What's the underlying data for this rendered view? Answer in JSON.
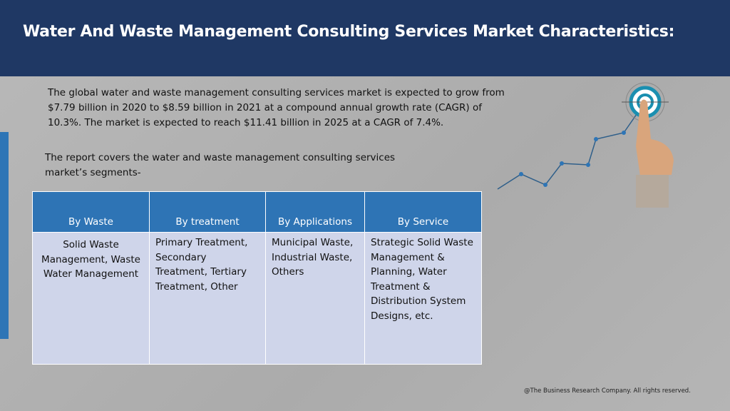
{
  "header": {
    "title": "Water And Waste Management Consulting Services Market Characteristics:"
  },
  "body": {
    "paragraphs": [
      "The global water and waste management consulting services market is expected to grow from $7.79 billion in 2020 to $8.59 billion in 2021 at a compound annual growth rate (CAGR) of 10.3%. The market is expected to reach $11.41 billion in 2025 at a CAGR of 7.4%.",
      "The report covers the water and waste management consulting services market’s segments-"
    ]
  },
  "table": {
    "columns": [
      "By Waste",
      "By treatment",
      "By Applications",
      "By Service"
    ],
    "rows": [
      [
        "Solid Waste Management, Waste Water Management",
        "Primary Treatment, Secondary Treatment, Tertiary Treatment, Other",
        "Municipal Waste, Industrial Waste, Others",
        "Strategic Solid Waste Management & Planning, Water Treatment & Distribution System Designs, etc."
      ]
    ]
  },
  "footer": {
    "copyright": "@The Business Research Company. All rights reserved."
  }
}
